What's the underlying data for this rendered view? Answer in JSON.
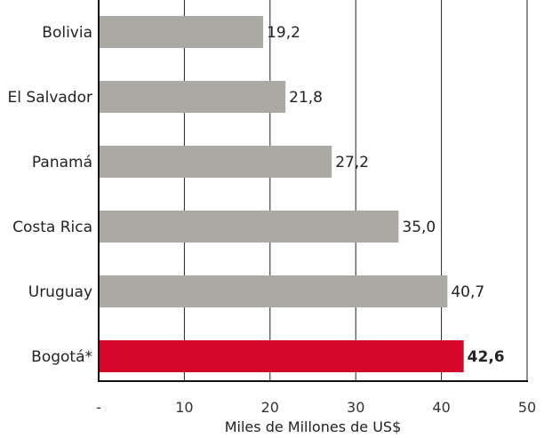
{
  "chart_data": {
    "type": "bar",
    "orientation": "horizontal",
    "categories": [
      "Bolivia",
      "El Salvador",
      "Panamá",
      "Costa Rica",
      "Uruguay",
      "Bogotá*"
    ],
    "values": [
      19.2,
      21.8,
      27.2,
      35.0,
      40.7,
      42.6
    ],
    "value_labels": [
      "19,2",
      "21,8",
      "27,2",
      "35,0",
      "40,7",
      "42,6"
    ],
    "highlight_index": 5,
    "xlabel": "Miles de Millones de US$",
    "xlim": [
      0,
      50
    ],
    "ticks": [
      0,
      10,
      20,
      30,
      40,
      50
    ],
    "tick_labels": [
      "-",
      "10",
      "20",
      "30",
      "40",
      "50"
    ],
    "grid": "vertical",
    "colors": {
      "bar": "#aaa9a3",
      "highlight": "#d5082b",
      "grid": "#222222"
    }
  }
}
